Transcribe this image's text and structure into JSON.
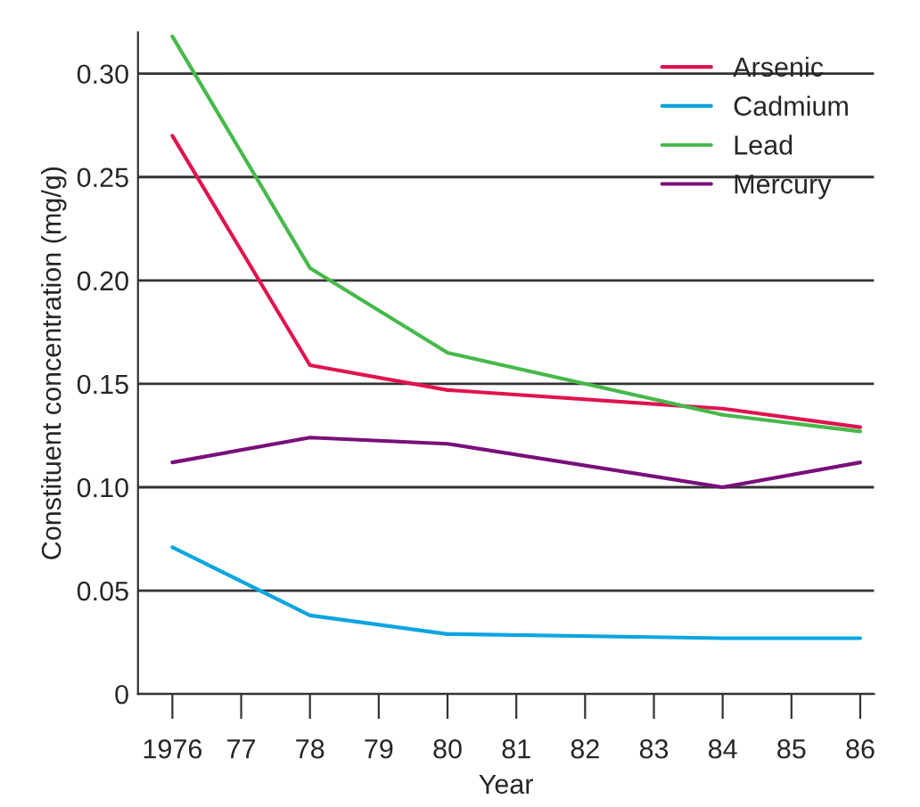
{
  "chart_data": {
    "type": "line",
    "xlabel": "Year",
    "ylabel": "Constituent concentration (mg/g)",
    "x": [
      1976,
      1978,
      1980,
      1984,
      1986
    ],
    "series": [
      {
        "name": "Arsenic",
        "color": "#e0134f",
        "values": [
          0.27,
          0.159,
          0.147,
          0.138,
          0.129
        ]
      },
      {
        "name": "Cadmium",
        "color": "#0aa5e0",
        "values": [
          0.071,
          0.038,
          0.029,
          0.027,
          0.027
        ]
      },
      {
        "name": "Lead",
        "color": "#46b94a",
        "values": [
          0.318,
          0.206,
          0.165,
          0.135,
          0.127
        ]
      },
      {
        "name": "Mercury",
        "color": "#7a0f7a",
        "values": [
          0.112,
          0.124,
          0.121,
          0.1,
          0.112
        ]
      }
    ],
    "xlim": [
      1975.5,
      1986.2
    ],
    "ylim": [
      0,
      0.32
    ],
    "xticks": [
      1976,
      {
        "value": 1977,
        "label": "77"
      },
      {
        "value": 1978,
        "label": "78"
      },
      {
        "value": 1979,
        "label": "79"
      },
      {
        "value": 1980,
        "label": "80"
      },
      {
        "value": 1981,
        "label": "81"
      },
      {
        "value": 1982,
        "label": "82"
      },
      {
        "value": 1983,
        "label": "83"
      },
      {
        "value": 1984,
        "label": "84"
      },
      {
        "value": 1985,
        "label": "85"
      },
      {
        "value": 1986,
        "label": "86"
      }
    ],
    "yticks": [
      0,
      0.05,
      {
        "value": 0.1,
        "label": "0.10"
      },
      0.15,
      {
        "value": 0.2,
        "label": "0.20"
      },
      0.25,
      {
        "value": 0.3,
        "label": "0.30"
      }
    ],
    "grid": "y",
    "legend": "top right",
    "marker": "none",
    "line_style": "solid"
  }
}
